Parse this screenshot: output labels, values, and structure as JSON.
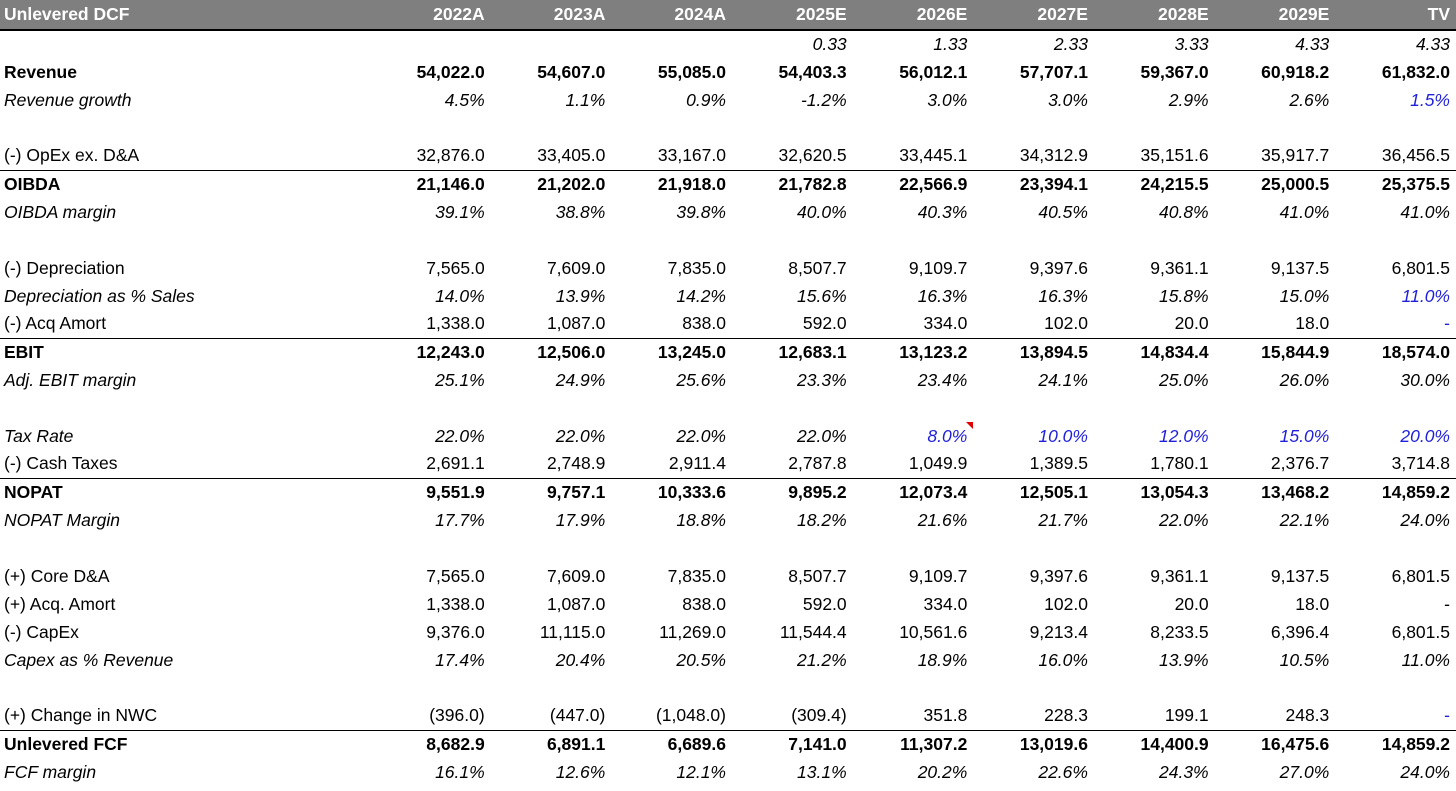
{
  "header": {
    "title": "Unlevered DCF",
    "years": [
      "2022A",
      "2023A",
      "2024A",
      "2025E",
      "2026E",
      "2027E",
      "2028E",
      "2029E",
      "TV"
    ]
  },
  "rows": {
    "period": {
      "label": "",
      "values": [
        "",
        "",
        "",
        "0.33",
        "1.33",
        "2.33",
        "3.33",
        "4.33",
        "4.33"
      ]
    },
    "revenue": {
      "label": "Revenue",
      "values": [
        "54,022.0",
        "54,607.0",
        "55,085.0",
        "54,403.3",
        "56,012.1",
        "57,707.1",
        "59,367.0",
        "60,918.2",
        "61,832.0"
      ]
    },
    "revenue_growth": {
      "label": "Revenue growth",
      "values": [
        "4.5%",
        "1.1%",
        "0.9%",
        "-1.2%",
        "3.0%",
        "3.0%",
        "2.9%",
        "2.6%",
        "1.5%"
      ]
    },
    "opex": {
      "label": "(-) OpEx ex. D&A",
      "values": [
        "32,876.0",
        "33,405.0",
        "33,167.0",
        "32,620.5",
        "33,445.1",
        "34,312.9",
        "35,151.6",
        "35,917.7",
        "36,456.5"
      ]
    },
    "oibda": {
      "label": "OIBDA",
      "values": [
        "21,146.0",
        "21,202.0",
        "21,918.0",
        "21,782.8",
        "22,566.9",
        "23,394.1",
        "24,215.5",
        "25,000.5",
        "25,375.5"
      ]
    },
    "oibda_margin": {
      "label": "OIBDA margin",
      "values": [
        "39.1%",
        "38.8%",
        "39.8%",
        "40.0%",
        "40.3%",
        "40.5%",
        "40.8%",
        "41.0%",
        "41.0%"
      ]
    },
    "depreciation": {
      "label": "(-) Depreciation",
      "values": [
        "7,565.0",
        "7,609.0",
        "7,835.0",
        "8,507.7",
        "9,109.7",
        "9,397.6",
        "9,361.1",
        "9,137.5",
        "6,801.5"
      ]
    },
    "dep_pct_sales": {
      "label": "Depreciation as % Sales",
      "values": [
        "14.0%",
        "13.9%",
        "14.2%",
        "15.6%",
        "16.3%",
        "16.3%",
        "15.8%",
        "15.0%",
        "11.0%"
      ]
    },
    "acq_amort": {
      "label": "(-) Acq Amort",
      "values": [
        "1,338.0",
        "1,087.0",
        "838.0",
        "592.0",
        "334.0",
        "102.0",
        "20.0",
        "18.0",
        "-"
      ]
    },
    "ebit": {
      "label": "EBIT",
      "values": [
        "12,243.0",
        "12,506.0",
        "13,245.0",
        "12,683.1",
        "13,123.2",
        "13,894.5",
        "14,834.4",
        "15,844.9",
        "18,574.0"
      ]
    },
    "adj_ebit_margin": {
      "label": "Adj. EBIT margin",
      "values": [
        "25.1%",
        "24.9%",
        "25.6%",
        "23.3%",
        "23.4%",
        "24.1%",
        "25.0%",
        "26.0%",
        "30.0%"
      ]
    },
    "tax_rate": {
      "label": "Tax Rate",
      "values": [
        "22.0%",
        "22.0%",
        "22.0%",
        "22.0%",
        "8.0%",
        "10.0%",
        "12.0%",
        "15.0%",
        "20.0%"
      ]
    },
    "cash_taxes": {
      "label": "(-) Cash Taxes",
      "values": [
        "2,691.1",
        "2,748.9",
        "2,911.4",
        "2,787.8",
        "1,049.9",
        "1,389.5",
        "1,780.1",
        "2,376.7",
        "3,714.8"
      ]
    },
    "nopat": {
      "label": "NOPAT",
      "values": [
        "9,551.9",
        "9,757.1",
        "10,333.6",
        "9,895.2",
        "12,073.4",
        "12,505.1",
        "13,054.3",
        "13,468.2",
        "14,859.2"
      ]
    },
    "nopat_margin": {
      "label": "NOPAT Margin",
      "values": [
        "17.7%",
        "17.9%",
        "18.8%",
        "18.2%",
        "21.6%",
        "21.7%",
        "22.0%",
        "22.1%",
        "24.0%"
      ]
    },
    "core_da": {
      "label": "(+) Core D&A",
      "values": [
        "7,565.0",
        "7,609.0",
        "7,835.0",
        "8,507.7",
        "9,109.7",
        "9,397.6",
        "9,361.1",
        "9,137.5",
        "6,801.5"
      ]
    },
    "acq_amort_add": {
      "label": "(+) Acq. Amort",
      "values": [
        "1,338.0",
        "1,087.0",
        "838.0",
        "592.0",
        "334.0",
        "102.0",
        "20.0",
        "18.0",
        "-"
      ]
    },
    "capex": {
      "label": "(-) CapEx",
      "values": [
        "9,376.0",
        "11,115.0",
        "11,269.0",
        "11,544.4",
        "10,561.6",
        "9,213.4",
        "8,233.5",
        "6,396.4",
        "6,801.5"
      ]
    },
    "capex_pct_rev": {
      "label": "Capex as % Revenue",
      "values": [
        "17.4%",
        "20.4%",
        "20.5%",
        "21.2%",
        "18.9%",
        "16.0%",
        "13.9%",
        "10.5%",
        "11.0%"
      ]
    },
    "nwc_change": {
      "label": "(+) Change in NWC",
      "values": [
        "(396.0)",
        "(447.0)",
        "(1,048.0)",
        "(309.4)",
        "351.8",
        "228.3",
        "199.1",
        "248.3",
        "-"
      ]
    },
    "unlevered_fcf": {
      "label": "Unlevered FCF",
      "values": [
        "8,682.9",
        "6,891.1",
        "6,689.6",
        "7,141.0",
        "11,307.2",
        "13,019.6",
        "14,400.9",
        "16,475.6",
        "14,859.2"
      ]
    },
    "fcf_margin": {
      "label": "FCF margin",
      "values": [
        "16.1%",
        "12.6%",
        "12.1%",
        "13.1%",
        "20.2%",
        "22.6%",
        "24.3%",
        "27.0%",
        "24.0%"
      ]
    }
  },
  "colors": {
    "header_bg": "#7f7f7f",
    "input_blue": "#1f1fdc",
    "comment_flag": "#e00000"
  }
}
